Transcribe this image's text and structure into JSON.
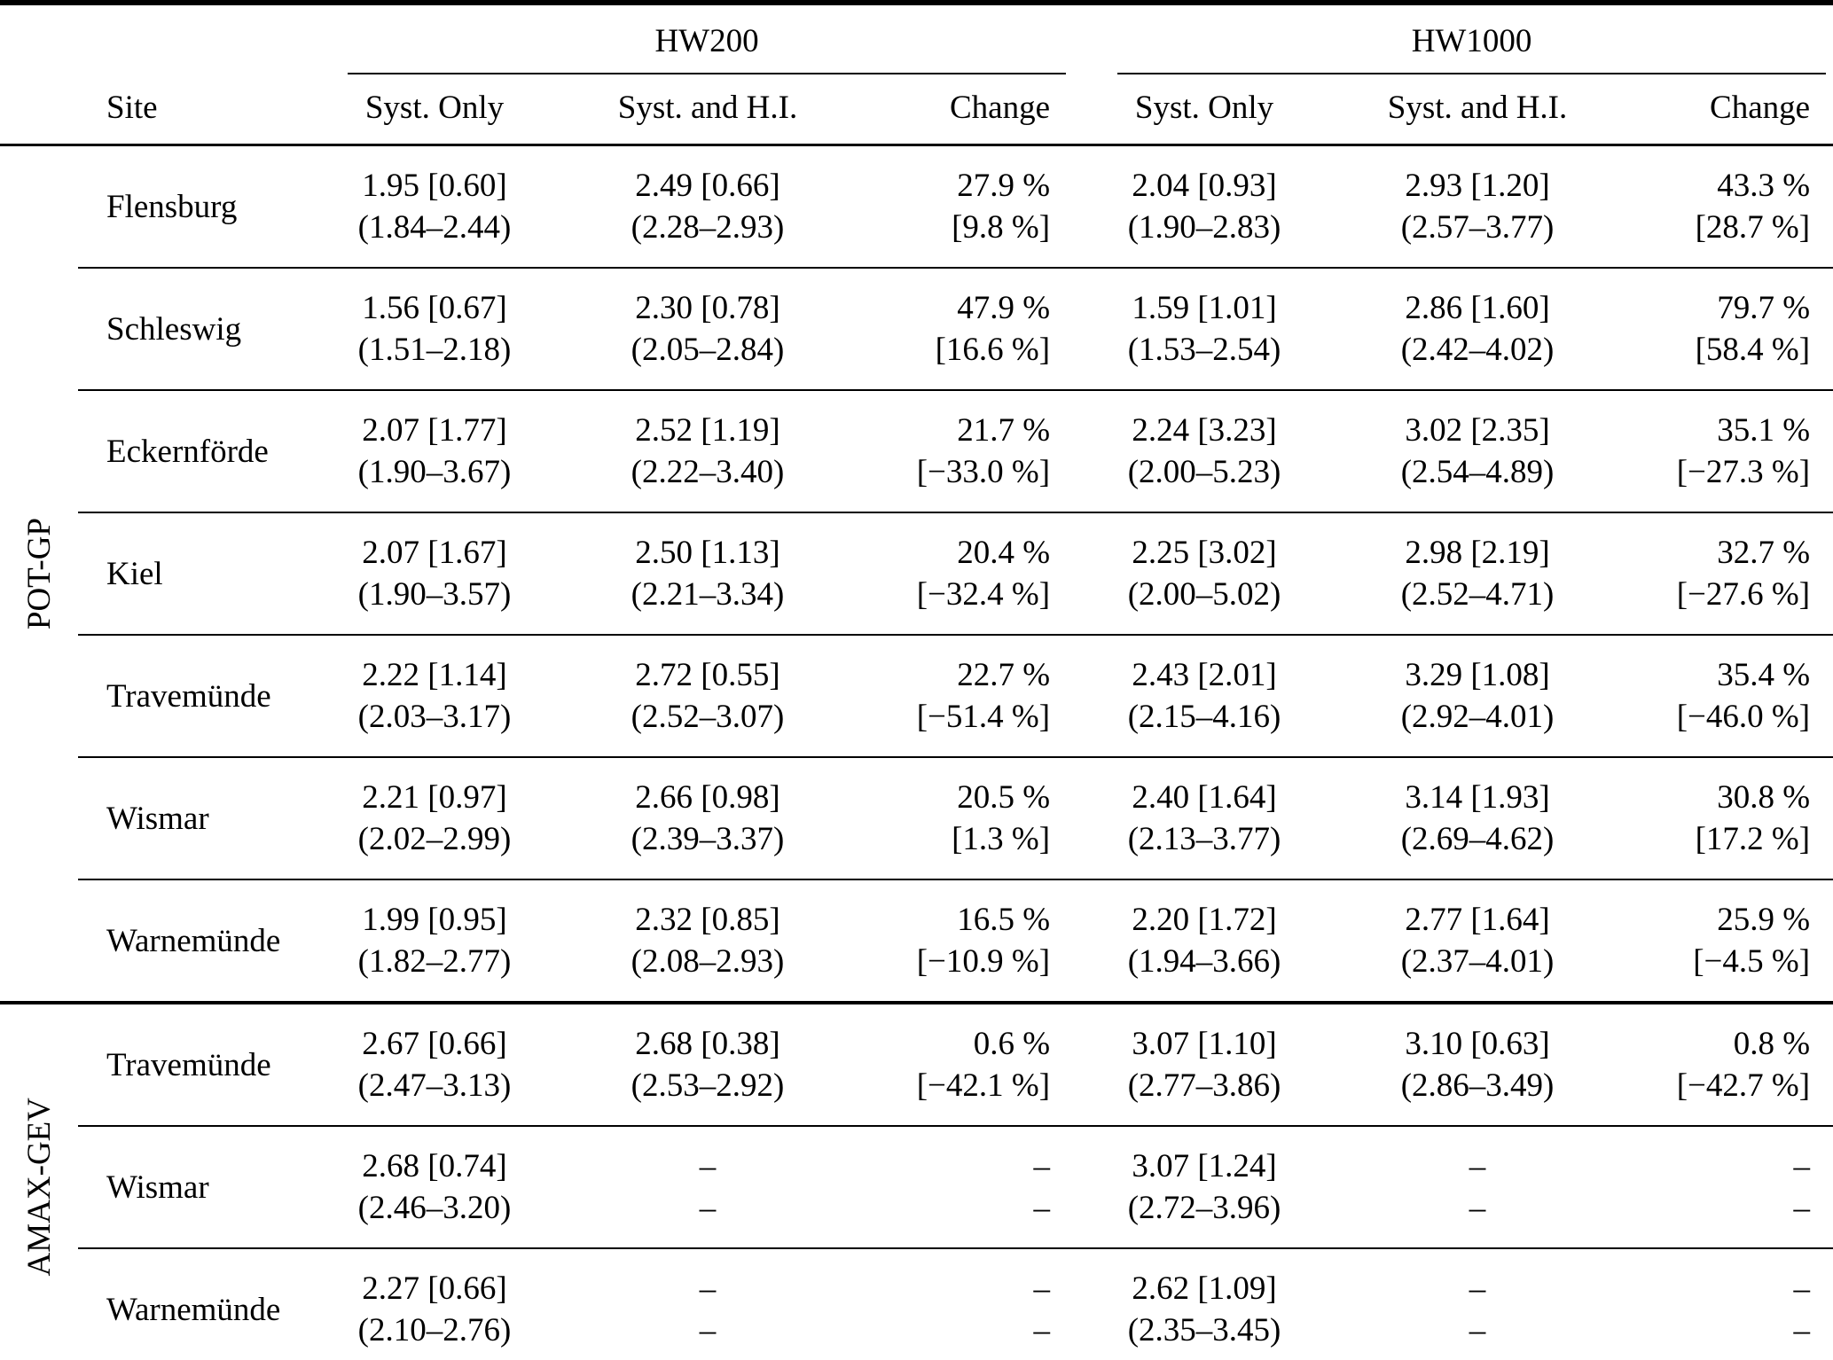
{
  "table": {
    "col_groups": [
      {
        "label": "HW200"
      },
      {
        "label": "HW1000"
      }
    ],
    "headers": {
      "site": "Site",
      "syst_only": "Syst. Only",
      "syst_hi": "Syst. and H.I.",
      "change": "Change"
    },
    "groups": [
      {
        "label": "POT-GP",
        "rows": [
          {
            "site": "Flensburg",
            "cells": [
              [
                "1.95 [0.60]",
                "(1.84–2.44)"
              ],
              [
                "2.49 [0.66]",
                "(2.28–2.93)"
              ],
              [
                "27.9 %",
                "[9.8 %]"
              ],
              [
                "2.04 [0.93]",
                "(1.90–2.83)"
              ],
              [
                "2.93 [1.20]",
                "(2.57–3.77)"
              ],
              [
                "43.3 %",
                "[28.7 %]"
              ]
            ]
          },
          {
            "site": "Schleswig",
            "cells": [
              [
                "1.56 [0.67]",
                "(1.51–2.18)"
              ],
              [
                "2.30 [0.78]",
                "(2.05–2.84)"
              ],
              [
                "47.9 %",
                "[16.6 %]"
              ],
              [
                "1.59 [1.01]",
                "(1.53–2.54)"
              ],
              [
                "2.86 [1.60]",
                "(2.42–4.02)"
              ],
              [
                "79.7 %",
                "[58.4 %]"
              ]
            ]
          },
          {
            "site": "Eckernförde",
            "cells": [
              [
                "2.07 [1.77]",
                "(1.90–3.67)"
              ],
              [
                "2.52 [1.19]",
                "(2.22–3.40)"
              ],
              [
                "21.7 %",
                "[−33.0 %]"
              ],
              [
                "2.24 [3.23]",
                "(2.00–5.23)"
              ],
              [
                "3.02 [2.35]",
                "(2.54–4.89)"
              ],
              [
                "35.1 %",
                "[−27.3 %]"
              ]
            ]
          },
          {
            "site": "Kiel",
            "cells": [
              [
                "2.07 [1.67]",
                "(1.90–3.57)"
              ],
              [
                "2.50 [1.13]",
                "(2.21–3.34)"
              ],
              [
                "20.4 %",
                "[−32.4 %]"
              ],
              [
                "2.25 [3.02]",
                "(2.00–5.02)"
              ],
              [
                "2.98 [2.19]",
                "(2.52–4.71)"
              ],
              [
                "32.7 %",
                "[−27.6 %]"
              ]
            ]
          },
          {
            "site": "Travemünde",
            "cells": [
              [
                "2.22 [1.14]",
                "(2.03–3.17)"
              ],
              [
                "2.72 [0.55]",
                "(2.52–3.07)"
              ],
              [
                "22.7 %",
                "[−51.4 %]"
              ],
              [
                "2.43 [2.01]",
                "(2.15–4.16)"
              ],
              [
                "3.29 [1.08]",
                "(2.92–4.01)"
              ],
              [
                "35.4 %",
                "[−46.0 %]"
              ]
            ]
          },
          {
            "site": "Wismar",
            "cells": [
              [
                "2.21 [0.97]",
                "(2.02–2.99)"
              ],
              [
                "2.66 [0.98]",
                "(2.39–3.37)"
              ],
              [
                "20.5 %",
                "[1.3 %]"
              ],
              [
                "2.40 [1.64]",
                "(2.13–3.77)"
              ],
              [
                "3.14 [1.93]",
                "(2.69–4.62)"
              ],
              [
                "30.8 %",
                "[17.2 %]"
              ]
            ]
          },
          {
            "site": "Warnemünde",
            "cells": [
              [
                "1.99 [0.95]",
                "(1.82–2.77)"
              ],
              [
                "2.32 [0.85]",
                "(2.08–2.93)"
              ],
              [
                "16.5 %",
                "[−10.9 %]"
              ],
              [
                "2.20 [1.72]",
                "(1.94–3.66)"
              ],
              [
                "2.77 [1.64]",
                "(2.37–4.01)"
              ],
              [
                "25.9 %",
                "[−4.5 %]"
              ]
            ]
          }
        ]
      },
      {
        "label": "AMAX-GEV",
        "rows": [
          {
            "site": "Travemünde",
            "cells": [
              [
                "2.67 [0.66]",
                "(2.47–3.13)"
              ],
              [
                "2.68 [0.38]",
                "(2.53–2.92)"
              ],
              [
                "0.6 %",
                "[−42.1 %]"
              ],
              [
                "3.07 [1.10]",
                "(2.77–3.86)"
              ],
              [
                "3.10 [0.63]",
                "(2.86–3.49)"
              ],
              [
                "0.8 %",
                "[−42.7 %]"
              ]
            ]
          },
          {
            "site": "Wismar",
            "cells": [
              [
                "2.68 [0.74]",
                "(2.46–3.20)"
              ],
              [
                "–",
                "–"
              ],
              [
                "–",
                "–"
              ],
              [
                "3.07 [1.24]",
                "(2.72–3.96)"
              ],
              [
                "–",
                "–"
              ],
              [
                "–",
                "–"
              ]
            ]
          },
          {
            "site": "Warnemünde",
            "cells": [
              [
                "2.27 [0.66]",
                "(2.10–2.76)"
              ],
              [
                "–",
                "–"
              ],
              [
                "–",
                "–"
              ],
              [
                "2.62 [1.09]",
                "(2.35–3.45)"
              ],
              [
                "–",
                "–"
              ],
              [
                "–",
                "–"
              ]
            ]
          }
        ]
      }
    ]
  }
}
